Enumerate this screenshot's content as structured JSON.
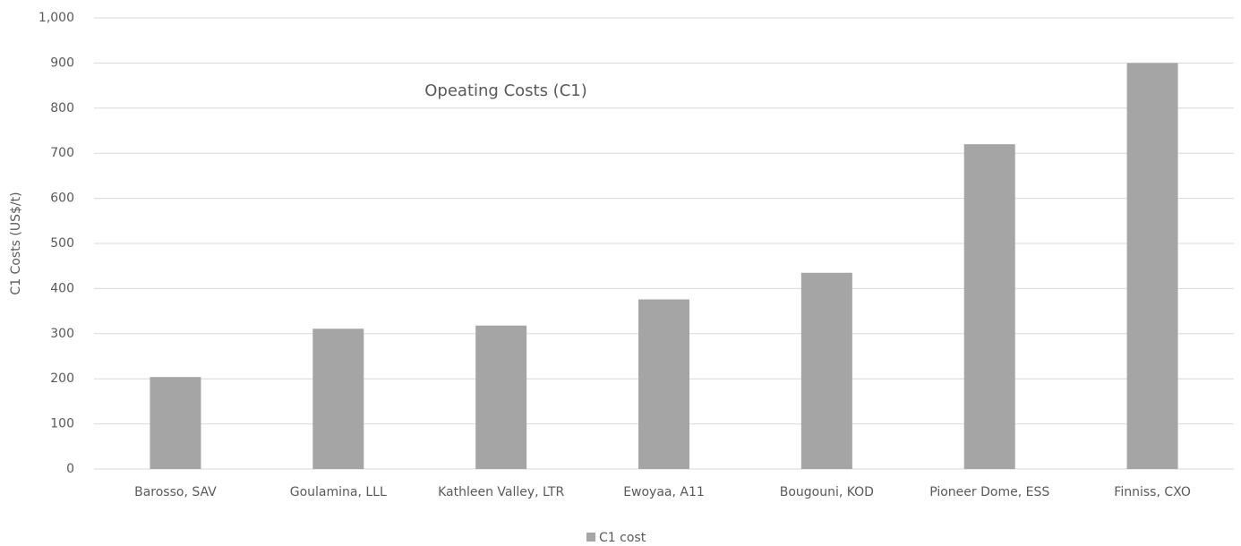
{
  "chart_data": {
    "type": "bar",
    "title": "Opeating Costs (C1)",
    "y_label": "C1 Costs (US$/t)",
    "categories": [
      "Barosso, SAV",
      "Goulamina, LLL",
      "Kathleen Valley, LTR",
      "Ewoyaa, A11",
      "Bougouni, KOD",
      "Pioneer Dome, ESS",
      "Finniss, CXO"
    ],
    "series": [
      {
        "name": "C1 cost",
        "color": "#a5a5a5",
        "values": [
          204,
          311,
          318,
          376,
          435,
          720,
          900
        ]
      }
    ],
    "ylim": [
      0,
      1000
    ],
    "yticks": [
      0,
      100,
      200,
      300,
      400,
      500,
      600,
      700,
      800,
      900,
      {
        "value": 1000,
        "label": "1,000"
      }
    ],
    "grid": true,
    "legend": "bottom"
  }
}
